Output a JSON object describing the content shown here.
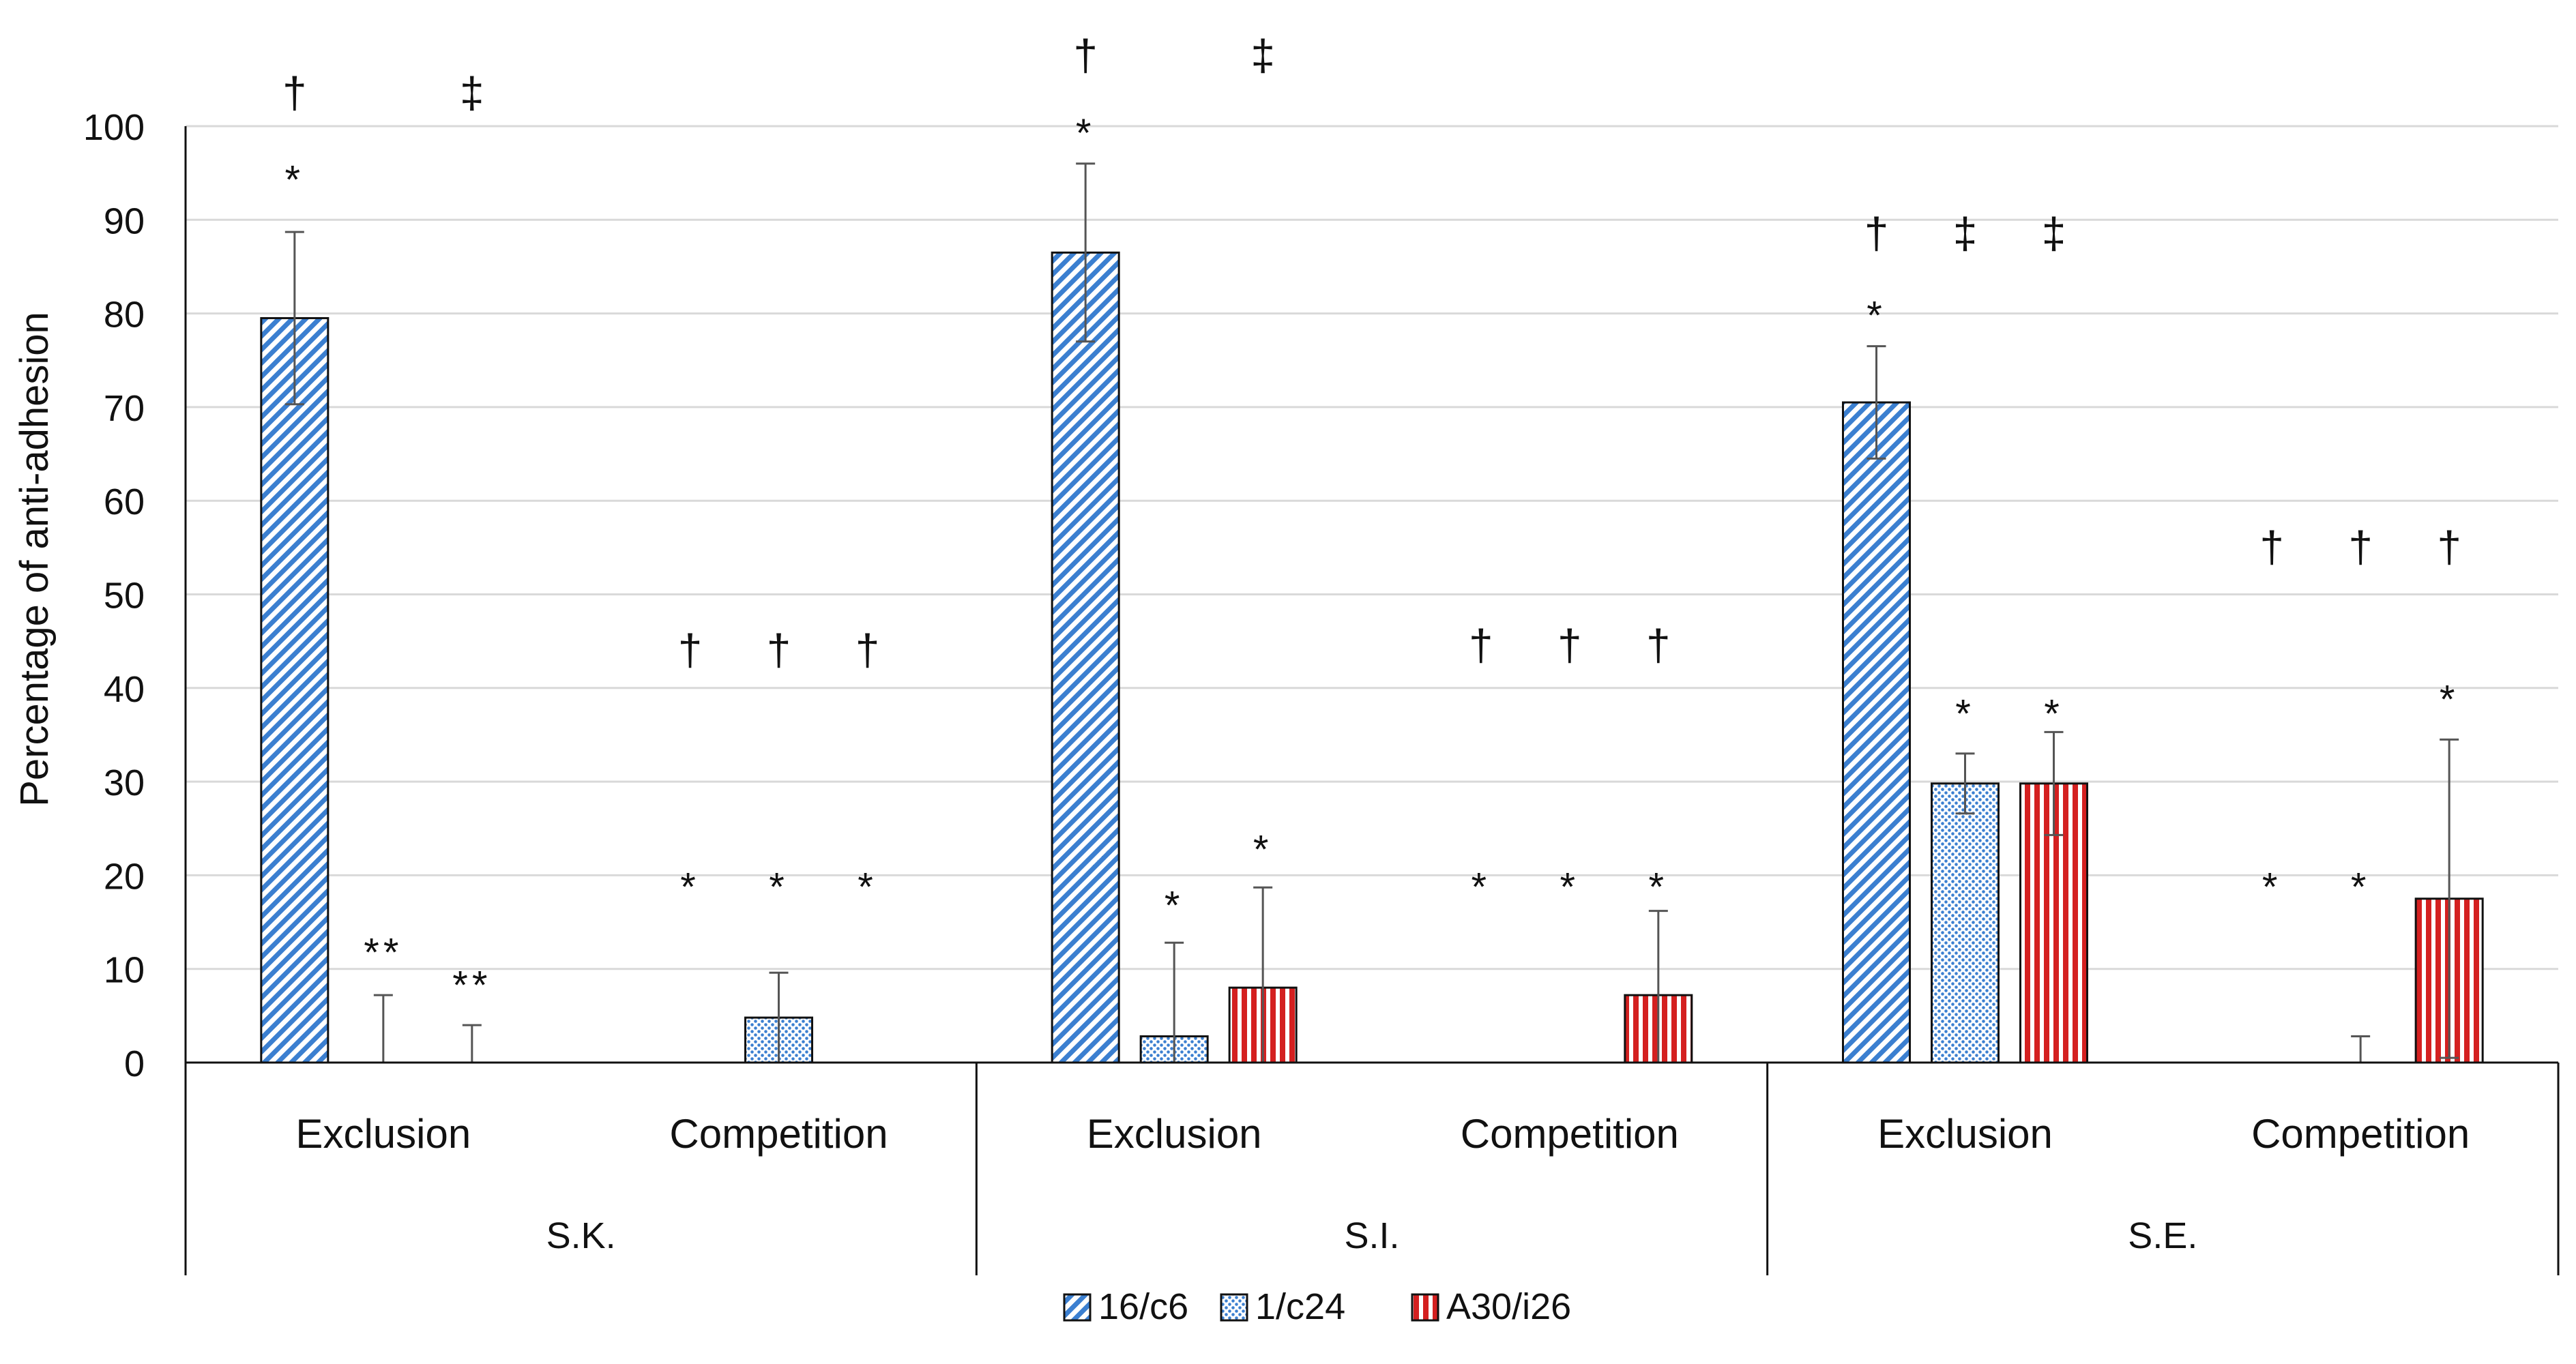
{
  "chart_data": {
    "type": "bar",
    "title": "",
    "ylabel": "Percentage  of  anti-adhesion",
    "xlabel": "",
    "ylim": [
      0,
      100
    ],
    "yticks": [
      "0",
      "10",
      "20",
      "30",
      "40",
      "50",
      "60",
      "70",
      "80",
      "90",
      "100"
    ],
    "grid": true,
    "legend_position": "bottom",
    "groups": [
      {
        "label": "S.K.",
        "subgroups": [
          "Exclusion",
          "Competition"
        ]
      },
      {
        "label": "S.I.",
        "subgroups": [
          "Exclusion",
          "Competition"
        ]
      },
      {
        "label": "S.E.",
        "subgroups": [
          "Exclusion",
          "Competition"
        ]
      }
    ],
    "categories": [
      "S.K. Exclusion",
      "S.K. Competition",
      "S.I. Exclusion",
      "S.I. Competition",
      "S.E. Exclusion",
      "S.E. Competition"
    ],
    "series": [
      {
        "name": "16/c6",
        "color": "#3b7fd0",
        "pattern": "diagonal",
        "values": [
          79.5,
          0,
          86.5,
          0,
          70.5,
          0
        ],
        "errors": [
          9.2,
          0,
          9.5,
          0,
          6.0,
          0
        ]
      },
      {
        "name": "1/c24",
        "color": "#3b7fd0",
        "pattern": "dotted",
        "values": [
          0,
          4.8,
          2.8,
          0,
          29.8,
          0
        ],
        "errors": [
          7.2,
          4.8,
          10.0,
          0,
          3.2,
          2.8
        ]
      },
      {
        "name": "A30/i26",
        "color": "#d42020",
        "pattern": "vertical",
        "values": [
          0,
          0,
          8.0,
          7.2,
          29.8,
          17.5
        ],
        "errors": [
          4.0,
          0,
          10.7,
          9.0,
          5.5,
          17.0
        ]
      }
    ],
    "annotations": [
      {
        "category": 0,
        "series": 0,
        "value": 95,
        "text": "*"
      },
      {
        "category": 0,
        "series": 0,
        "value": 104,
        "text": "†"
      },
      {
        "category": 0,
        "series": 1,
        "value": 12.5,
        "text": "**"
      },
      {
        "category": 0,
        "series": 2,
        "value": 9,
        "text": "**"
      },
      {
        "category": 0,
        "series": 2,
        "value": 104,
        "text": "‡"
      },
      {
        "category": 1,
        "series": 0,
        "value": 19.5,
        "text": "*"
      },
      {
        "category": 1,
        "series": 1,
        "value": 19.5,
        "text": "*"
      },
      {
        "category": 1,
        "series": 2,
        "value": 19.5,
        "text": "*"
      },
      {
        "category": 1,
        "series": 0,
        "value": 44.5,
        "text": "†"
      },
      {
        "category": 1,
        "series": 1,
        "value": 44.5,
        "text": "†"
      },
      {
        "category": 1,
        "series": 2,
        "value": 44.5,
        "text": "†"
      },
      {
        "category": 2,
        "series": 0,
        "value": 100,
        "text": "*"
      },
      {
        "category": 2,
        "series": 0,
        "value": 108,
        "text": "†"
      },
      {
        "category": 2,
        "series": 1,
        "value": 17.5,
        "text": "*"
      },
      {
        "category": 2,
        "series": 2,
        "value": 23.5,
        "text": "*"
      },
      {
        "category": 2,
        "series": 2,
        "value": 108,
        "text": "‡"
      },
      {
        "category": 3,
        "series": 0,
        "value": 19.5,
        "text": "*"
      },
      {
        "category": 3,
        "series": 1,
        "value": 19.5,
        "text": "*"
      },
      {
        "category": 3,
        "series": 2,
        "value": 19.5,
        "text": "*"
      },
      {
        "category": 3,
        "series": 0,
        "value": 45,
        "text": "†"
      },
      {
        "category": 3,
        "series": 1,
        "value": 45,
        "text": "†"
      },
      {
        "category": 3,
        "series": 2,
        "value": 45,
        "text": "†"
      },
      {
        "category": 4,
        "series": 0,
        "value": 80.5,
        "text": "*"
      },
      {
        "category": 4,
        "series": 1,
        "value": 38,
        "text": "*"
      },
      {
        "category": 4,
        "series": 2,
        "value": 38,
        "text": "*"
      },
      {
        "category": 4,
        "series": 0,
        "value": 89,
        "text": "†"
      },
      {
        "category": 4,
        "series": 1,
        "value": 89,
        "text": "‡"
      },
      {
        "category": 4,
        "series": 2,
        "value": 89,
        "text": "‡"
      },
      {
        "category": 5,
        "series": 0,
        "value": 19.5,
        "text": "*"
      },
      {
        "category": 5,
        "series": 1,
        "value": 19.5,
        "text": "*"
      },
      {
        "category": 5,
        "series": 2,
        "value": 39.5,
        "text": "*"
      },
      {
        "category": 5,
        "series": 0,
        "value": 55.5,
        "text": "†"
      },
      {
        "category": 5,
        "series": 1,
        "value": 55.5,
        "text": "†"
      },
      {
        "category": 5,
        "series": 2,
        "value": 55.5,
        "text": "†"
      }
    ]
  }
}
